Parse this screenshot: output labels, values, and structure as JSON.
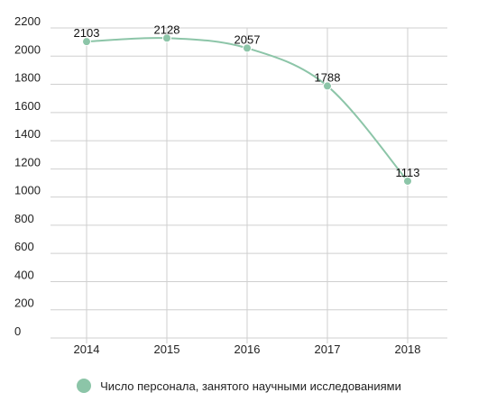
{
  "chart_data": {
    "type": "line",
    "categories": [
      "2014",
      "2015",
      "2016",
      "2017",
      "2018"
    ],
    "series": [
      {
        "name": "Число персонала, занятого научными исследованиями",
        "values": [
          2103,
          2128,
          2057,
          1788,
          1113
        ],
        "data_labels": [
          "2103",
          "2128",
          "2057",
          "1788",
          "1113"
        ],
        "color": "#8cc5a8"
      }
    ],
    "y_ticks": [
      "0",
      "200",
      "400",
      "600",
      "800",
      "1000",
      "1200",
      "1400",
      "1600",
      "1800",
      "2000",
      "2200"
    ],
    "ylim": [
      0,
      2200
    ],
    "grid": true,
    "grid_color": "#cfcfcf",
    "legend_position": "bottom"
  }
}
